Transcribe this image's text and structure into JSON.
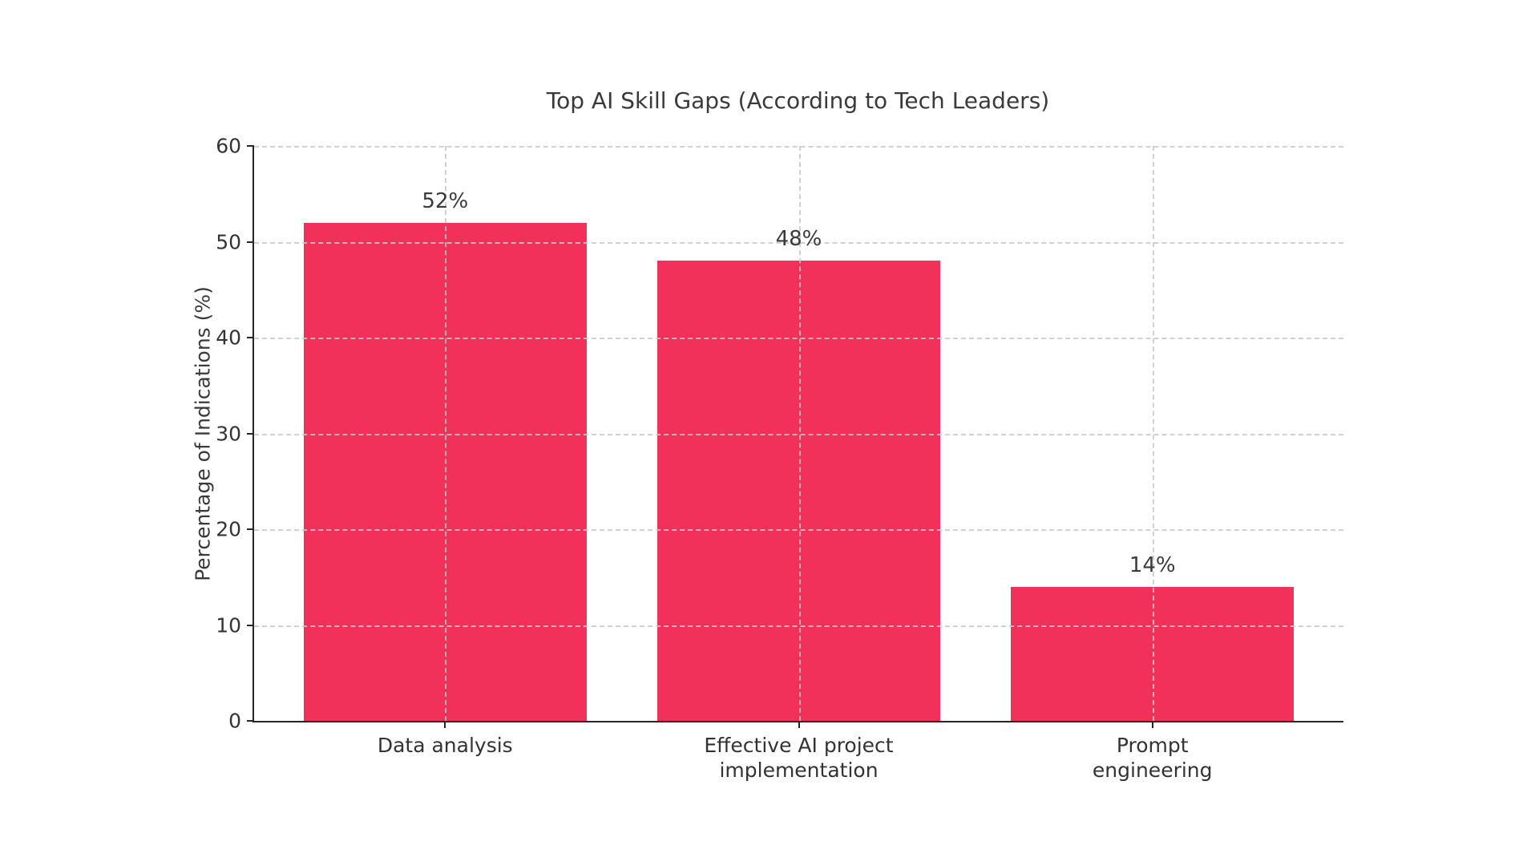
{
  "chart_data": {
    "type": "bar",
    "title": "Top AI Skill Gaps (According to Tech Leaders)",
    "ylabel": "Percentage of Indications (%)",
    "xlabel": "",
    "categories": [
      "Data analysis",
      "Effective AI project\nimplementation",
      "Prompt engineering"
    ],
    "values": [
      52,
      48,
      14
    ],
    "value_labels": [
      "52%",
      "48%",
      "14%"
    ],
    "ylim": [
      0,
      60
    ],
    "yticks": [
      0,
      10,
      20,
      30,
      40,
      50,
      60
    ],
    "grid": {
      "horizontal": true,
      "vertical": true,
      "style": "dashed"
    },
    "legend_position": "none",
    "colors": {
      "bar": "#F2315B",
      "text": "#3a3a3a",
      "grid": "#c9c9c9",
      "spine": "#262626",
      "background": "#ffffff"
    }
  }
}
